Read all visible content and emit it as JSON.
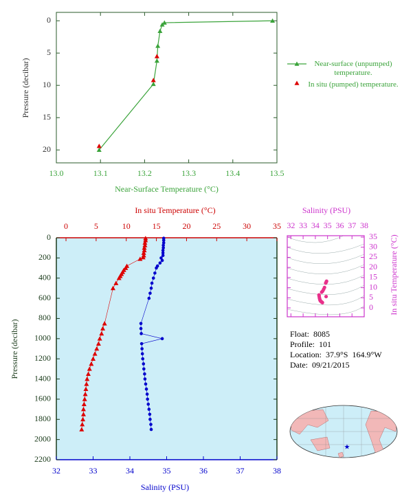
{
  "chart_data": [
    {
      "type": "line",
      "xlabel": "Near-Surface Temperature (°C)",
      "ylabel": "Pressure (decibar)",
      "xlim": [
        13.0,
        13.5
      ],
      "xticks": [
        {
          "value": 13.0,
          "label": "13.0"
        },
        {
          "value": 13.1,
          "label": "13.1"
        },
        {
          "value": 13.2,
          "label": "13.2"
        },
        {
          "value": 13.3,
          "label": "13.3"
        },
        {
          "value": 13.4,
          "label": "13.4"
        },
        {
          "value": 13.5,
          "label": "13.5"
        }
      ],
      "ylim": [
        22,
        -1.3
      ],
      "yticks": [
        0,
        5,
        10,
        15,
        20
      ],
      "legend": "right",
      "series": [
        {
          "name": "Near-surface (unpumped) temperature.",
          "color": "#3aa33a",
          "marker": "triangle",
          "line": true,
          "x": [
            13.49,
            13.245,
            13.24,
            13.235,
            13.23,
            13.228,
            13.22,
            13.097
          ],
          "y": [
            0.0,
            0.3,
            0.6,
            1.6,
            3.9,
            6.2,
            9.8,
            20.0
          ]
        },
        {
          "name": "In situ (pumped) temperature.",
          "color": "#dd0000",
          "marker": "triangle",
          "line": false,
          "x": [
            13.228,
            13.22,
            13.097
          ],
          "y": [
            5.5,
            9.2,
            19.4
          ]
        }
      ]
    },
    {
      "type": "line",
      "xlabel": "Salinity (PSU)",
      "x2label": "In situ Temperature (°C)",
      "ylabel": "Pressure (decibar)",
      "xlim": [
        32,
        38
      ],
      "xticks": [
        32,
        33,
        34,
        35,
        36,
        37,
        38
      ],
      "x2lim": [
        -1.6,
        35
      ],
      "x2ticks": [
        0,
        5,
        10,
        15,
        20,
        25,
        30,
        35
      ],
      "ylim": [
        2200,
        0
      ],
      "yticks": [
        0,
        200,
        400,
        600,
        800,
        1000,
        1200,
        1400,
        1600,
        1800,
        2000,
        2200
      ],
      "series": [
        {
          "axis": "x2",
          "color": "#dd0000",
          "marker": "triangle",
          "line": true,
          "x": [
            13.2,
            13.2,
            13.1,
            13.1,
            13.0,
            13.0,
            12.9,
            12.9,
            12.8,
            12.3,
            10.1,
            9.9,
            9.6,
            9.4,
            9.2,
            9.0,
            8.8,
            8.3,
            7.8,
            6.4,
            6.1,
            5.9,
            5.6,
            5.4,
            5.1,
            4.8,
            4.5,
            4.2,
            3.9,
            3.7,
            3.5,
            3.4,
            3.3,
            3.2,
            3.1,
            3.0,
            2.9,
            2.9,
            2.8,
            2.7,
            2.6
          ],
          "y": [
            5,
            25,
            50,
            75,
            100,
            125,
            150,
            175,
            195,
            210,
            280,
            300,
            320,
            340,
            360,
            380,
            400,
            450,
            500,
            850,
            900,
            950,
            1000,
            1050,
            1100,
            1150,
            1200,
            1250,
            1300,
            1350,
            1400,
            1450,
            1500,
            1550,
            1600,
            1650,
            1700,
            1750,
            1800,
            1850,
            1900
          ]
        },
        {
          "color": "#0000cc",
          "marker": "circle",
          "line": true,
          "x": [
            34.92,
            34.92,
            34.92,
            34.91,
            34.91,
            34.9,
            34.9,
            34.9,
            34.85,
            34.88,
            34.82,
            34.75,
            34.72,
            34.68,
            34.64,
            34.6,
            34.58,
            34.55,
            34.52,
            34.3,
            34.3,
            34.31,
            34.88,
            34.32,
            34.33,
            34.34,
            34.35,
            34.37,
            34.38,
            34.4,
            34.41,
            34.43,
            34.45,
            34.47,
            34.48,
            34.5,
            34.52,
            34.54,
            34.55,
            34.57,
            34.58
          ],
          "y": [
            5,
            25,
            50,
            75,
            100,
            125,
            150,
            175,
            200,
            225,
            250,
            280,
            300,
            350,
            400,
            450,
            500,
            550,
            600,
            850,
            900,
            950,
            1000,
            1050,
            1100,
            1150,
            1200,
            1250,
            1300,
            1350,
            1400,
            1450,
            1500,
            1550,
            1600,
            1650,
            1700,
            1750,
            1800,
            1850,
            1900
          ]
        }
      ]
    },
    {
      "type": "scatter",
      "xlabel": "Salinity (PSU)",
      "ylabel": "In situ Temperature (°C)",
      "xlim": [
        31.7,
        38
      ],
      "xticks": [
        32,
        33,
        34,
        35,
        36,
        37,
        38
      ],
      "ylim": [
        -4.4,
        35.7
      ],
      "yticks": [
        0,
        5,
        10,
        15,
        20,
        25,
        30,
        35
      ],
      "series": [
        {
          "color": "#e8308a",
          "marker": "circle",
          "line": false,
          "x": [
            34.92,
            34.9,
            34.85,
            34.75,
            34.68,
            34.6,
            34.52,
            34.3,
            34.31,
            34.33,
            34.35,
            34.38,
            34.41,
            34.45,
            34.5,
            34.55,
            34.58,
            34.88
          ],
          "y": [
            13.2,
            12.9,
            12.3,
            10.1,
            9.2,
            8.3,
            7.8,
            6.4,
            5.9,
            5.1,
            4.5,
            3.9,
            3.5,
            3.3,
            3.0,
            2.8,
            2.6,
            5.6
          ]
        }
      ]
    }
  ],
  "profile_info": {
    "float_label": "Float:",
    "float": "8085",
    "profile_label": "Profile:",
    "profile": "101",
    "location_label": "Location:",
    "latitude": "37.9°S",
    "longitude": "164.9°W",
    "date_label": "Date:",
    "date": "09/21/2015"
  }
}
